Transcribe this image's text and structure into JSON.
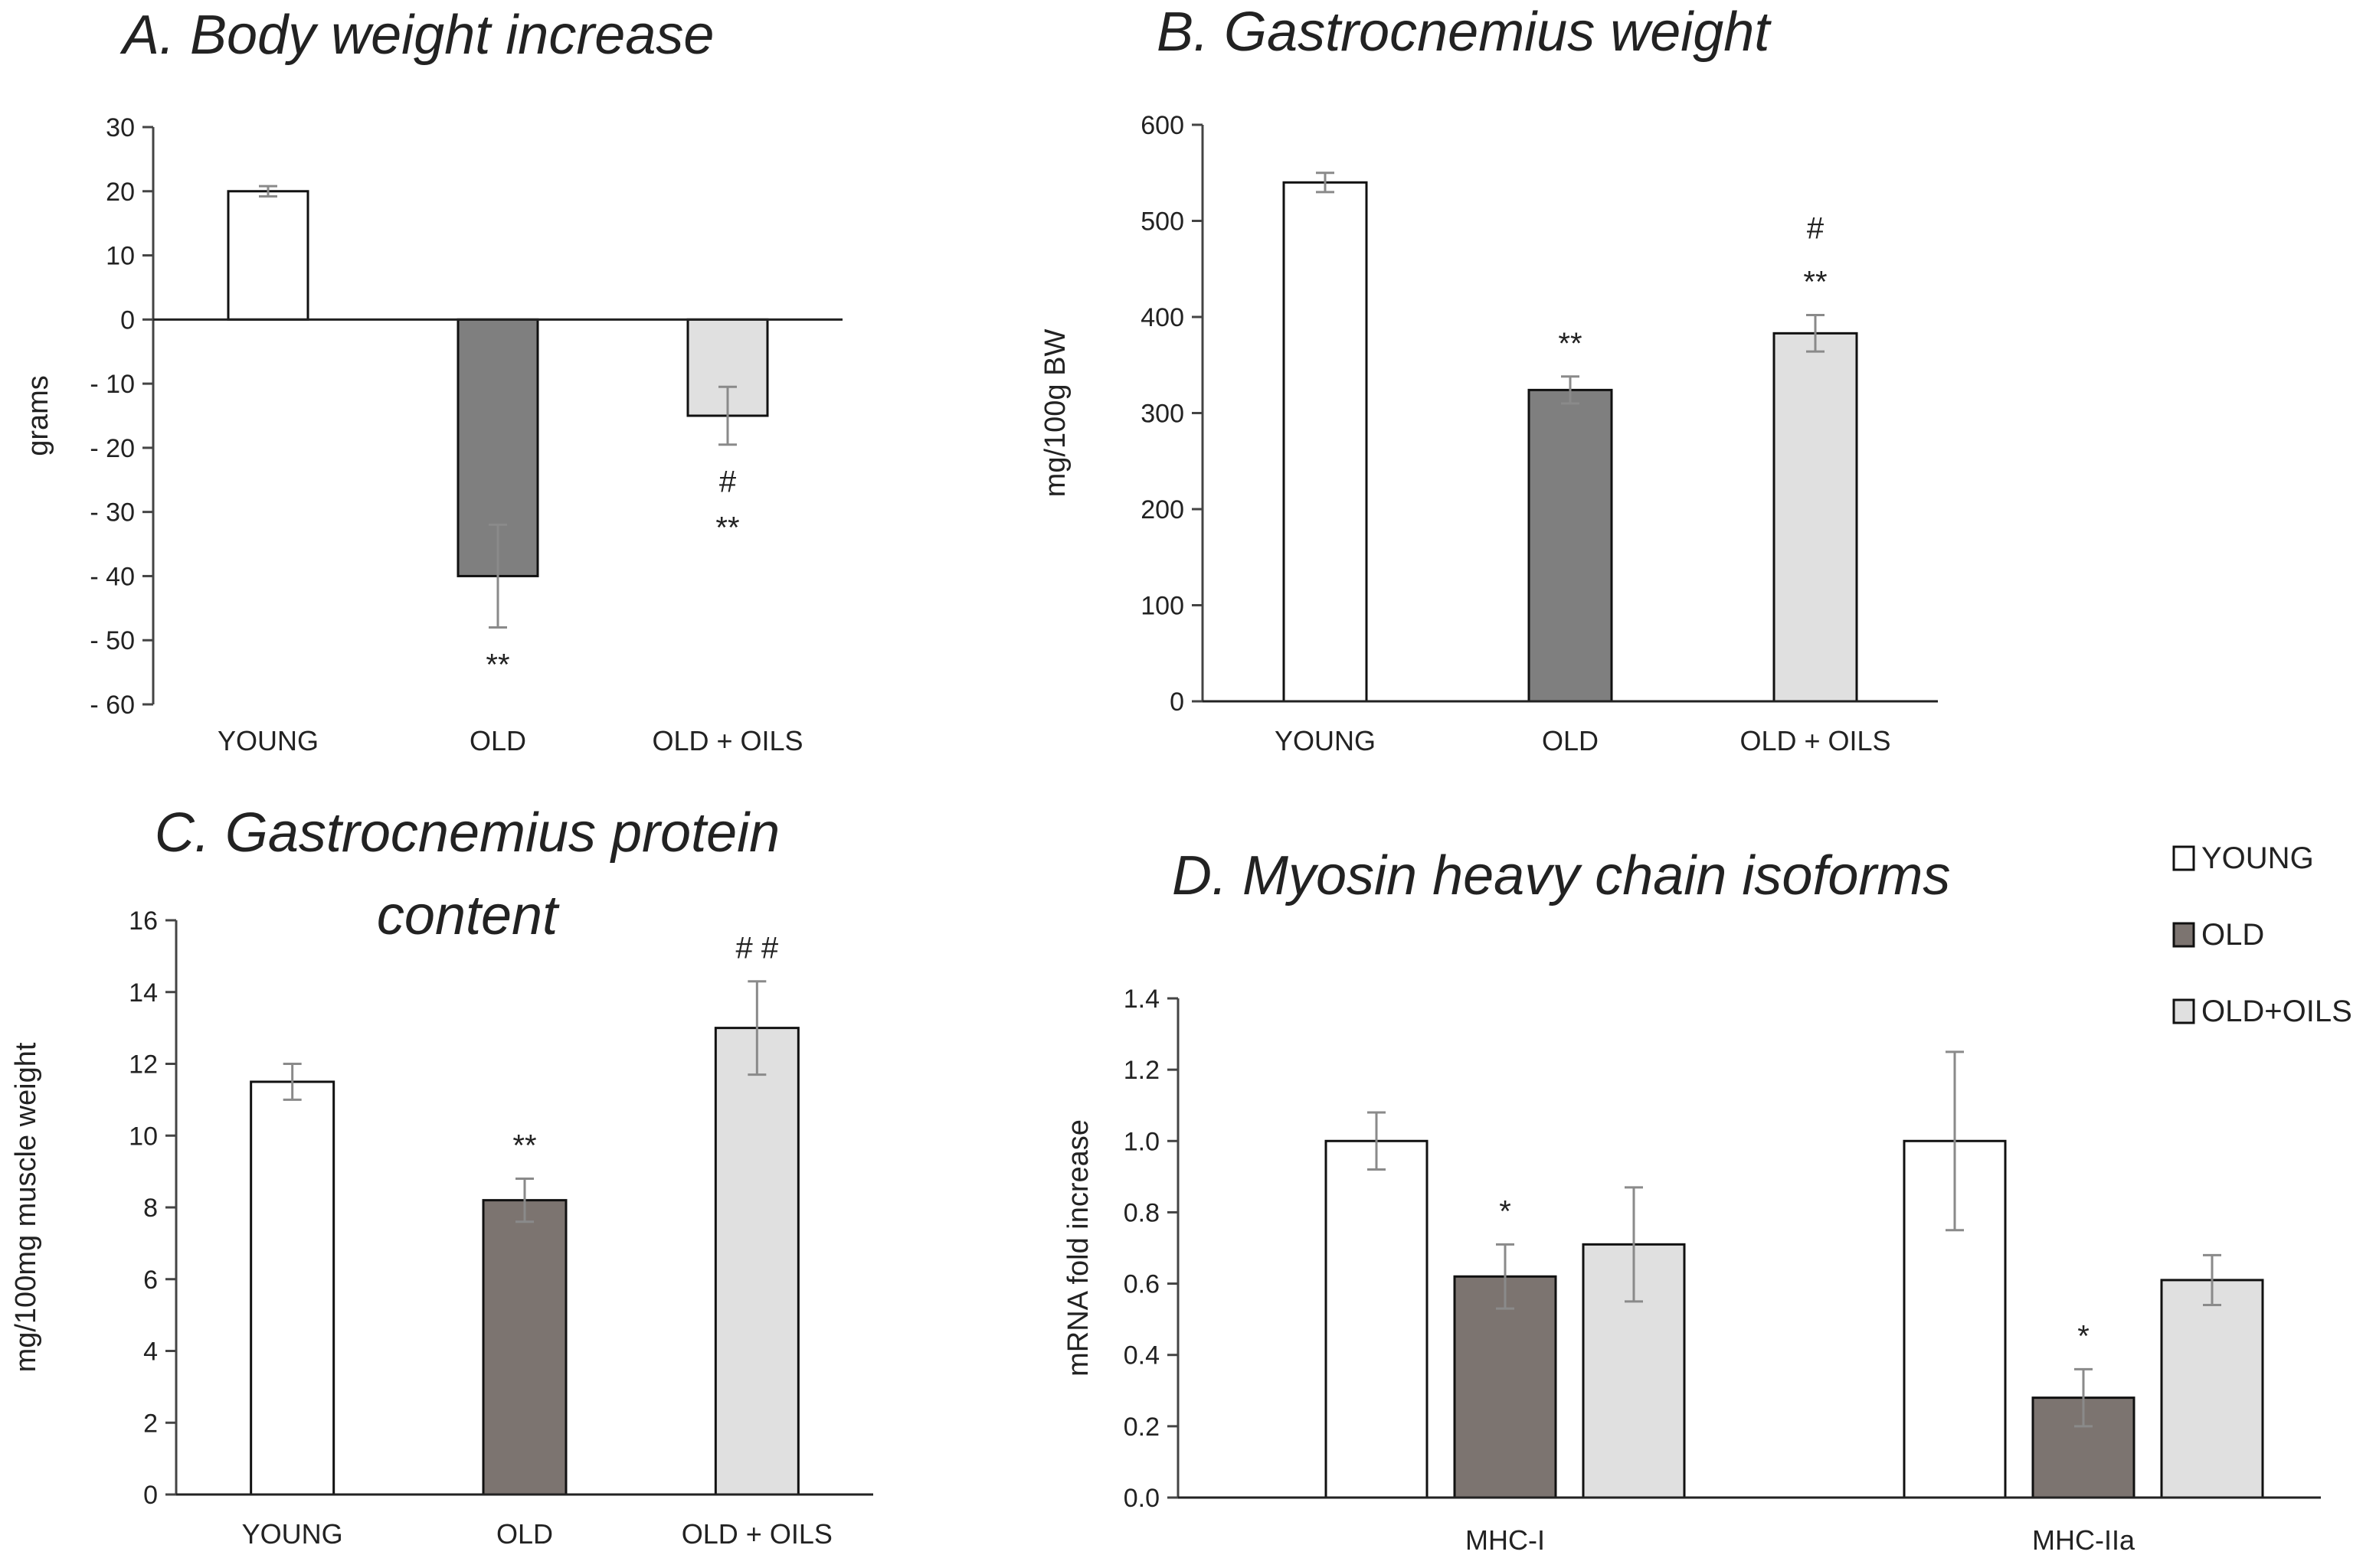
{
  "figure": {
    "panel_titles": [
      "A. Body weight increase",
      "B. Gastrocnemius weight",
      "C. Gastrocnemius protein",
      "content",
      "D. Myosin heavy chain isoforms"
    ]
  },
  "chart_data": [
    {
      "id": "A",
      "type": "bar",
      "title": "A. Body weight increase",
      "ylabel": "grams",
      "xlabel": "",
      "categories": [
        "YOUNG",
        "OLD",
        "OLD + OILS"
      ],
      "values": [
        20,
        -40,
        -15
      ],
      "errors": [
        0.8,
        8,
        4.5
      ],
      "colors": [
        "#ffffff",
        "#7f7f7f",
        "#e0e0e0"
      ],
      "ylim": [
        -60,
        30
      ],
      "yticks": [
        30,
        20,
        10,
        0,
        -10,
        -20,
        -30,
        -40,
        -50,
        -60
      ],
      "tick_labels": [
        "30",
        "20",
        "10",
        "0",
        "- 10",
        "- 20",
        "- 30",
        "- 40",
        "- 50",
        "- 60"
      ],
      "annotations": [
        {
          "category": "OLD",
          "lines": [
            "**"
          ]
        },
        {
          "category": "OLD + OILS",
          "lines": [
            "#",
            "**"
          ]
        }
      ]
    },
    {
      "id": "B",
      "type": "bar",
      "title": "B. Gastrocnemius weight",
      "ylabel": "mg/100g BW",
      "xlabel": "",
      "categories": [
        "YOUNG",
        "OLD",
        "OLD + OILS"
      ],
      "values": [
        540,
        324,
        383
      ],
      "errors": [
        10,
        14,
        19
      ],
      "colors": [
        "#ffffff",
        "#7f7f7f",
        "#e0e0e0"
      ],
      "ylim": [
        0,
        600
      ],
      "yticks": [
        0,
        100,
        200,
        300,
        400,
        500,
        600
      ],
      "tick_labels": [
        "0",
        "100",
        "200",
        "300",
        "400",
        "500",
        "600"
      ],
      "annotations": [
        {
          "category": "OLD",
          "lines": [
            "**"
          ]
        },
        {
          "category": "OLD + OILS",
          "lines": [
            "#",
            "**"
          ]
        }
      ]
    },
    {
      "id": "C",
      "type": "bar",
      "title": "C. Gastrocnemius protein content",
      "ylabel": "mg/100mg muscle weight",
      "xlabel": "",
      "categories": [
        "YOUNG",
        "OLD",
        "OLD + OILS"
      ],
      "values": [
        11.5,
        8.2,
        13.0
      ],
      "errors": [
        0.5,
        0.6,
        1.3
      ],
      "colors": [
        "#ffffff",
        "#7c7470",
        "#e0e0e0"
      ],
      "ylim": [
        0,
        16
      ],
      "yticks": [
        0,
        2,
        4,
        6,
        8,
        10,
        12,
        14,
        16
      ],
      "tick_labels": [
        "0",
        "2",
        "4",
        "6",
        "8",
        "10",
        "12",
        "14",
        "16"
      ],
      "annotations": [
        {
          "category": "OLD",
          "lines": [
            "**"
          ]
        },
        {
          "category": "OLD + OILS",
          "lines": [
            "# #"
          ]
        }
      ]
    },
    {
      "id": "D",
      "type": "bar",
      "title": "D. Myosin heavy chain isoforms",
      "ylabel": "mRNA fold increase",
      "xlabel": "",
      "categories": [
        "MHC-I",
        "MHC-IIa"
      ],
      "series": [
        {
          "name": "YOUNG",
          "values": [
            1.0,
            1.0
          ],
          "errors": [
            0.08,
            0.25
          ],
          "color": "#ffffff"
        },
        {
          "name": "OLD",
          "values": [
            0.62,
            0.28
          ],
          "errors": [
            0.09,
            0.08
          ],
          "color": "#7c7470"
        },
        {
          "name": "OLD+OILS",
          "values": [
            0.71,
            0.61
          ],
          "errors": [
            0.16,
            0.07
          ],
          "color": "#e0e0e0"
        }
      ],
      "ylim": [
        0,
        1.4
      ],
      "yticks": [
        0,
        0.2,
        0.4,
        0.6,
        0.8,
        1.0,
        1.2,
        1.4
      ],
      "tick_labels": [
        "0.0",
        "0.2",
        "0.4",
        "0.6",
        "0.8",
        "1.0",
        "1.2",
        "1.4"
      ],
      "legend": "top-right",
      "annotations": [
        {
          "category": "MHC-I",
          "series": "OLD",
          "lines": [
            "*"
          ]
        },
        {
          "category": "MHC-IIa",
          "series": "OLD",
          "lines": [
            "*"
          ]
        }
      ]
    }
  ]
}
